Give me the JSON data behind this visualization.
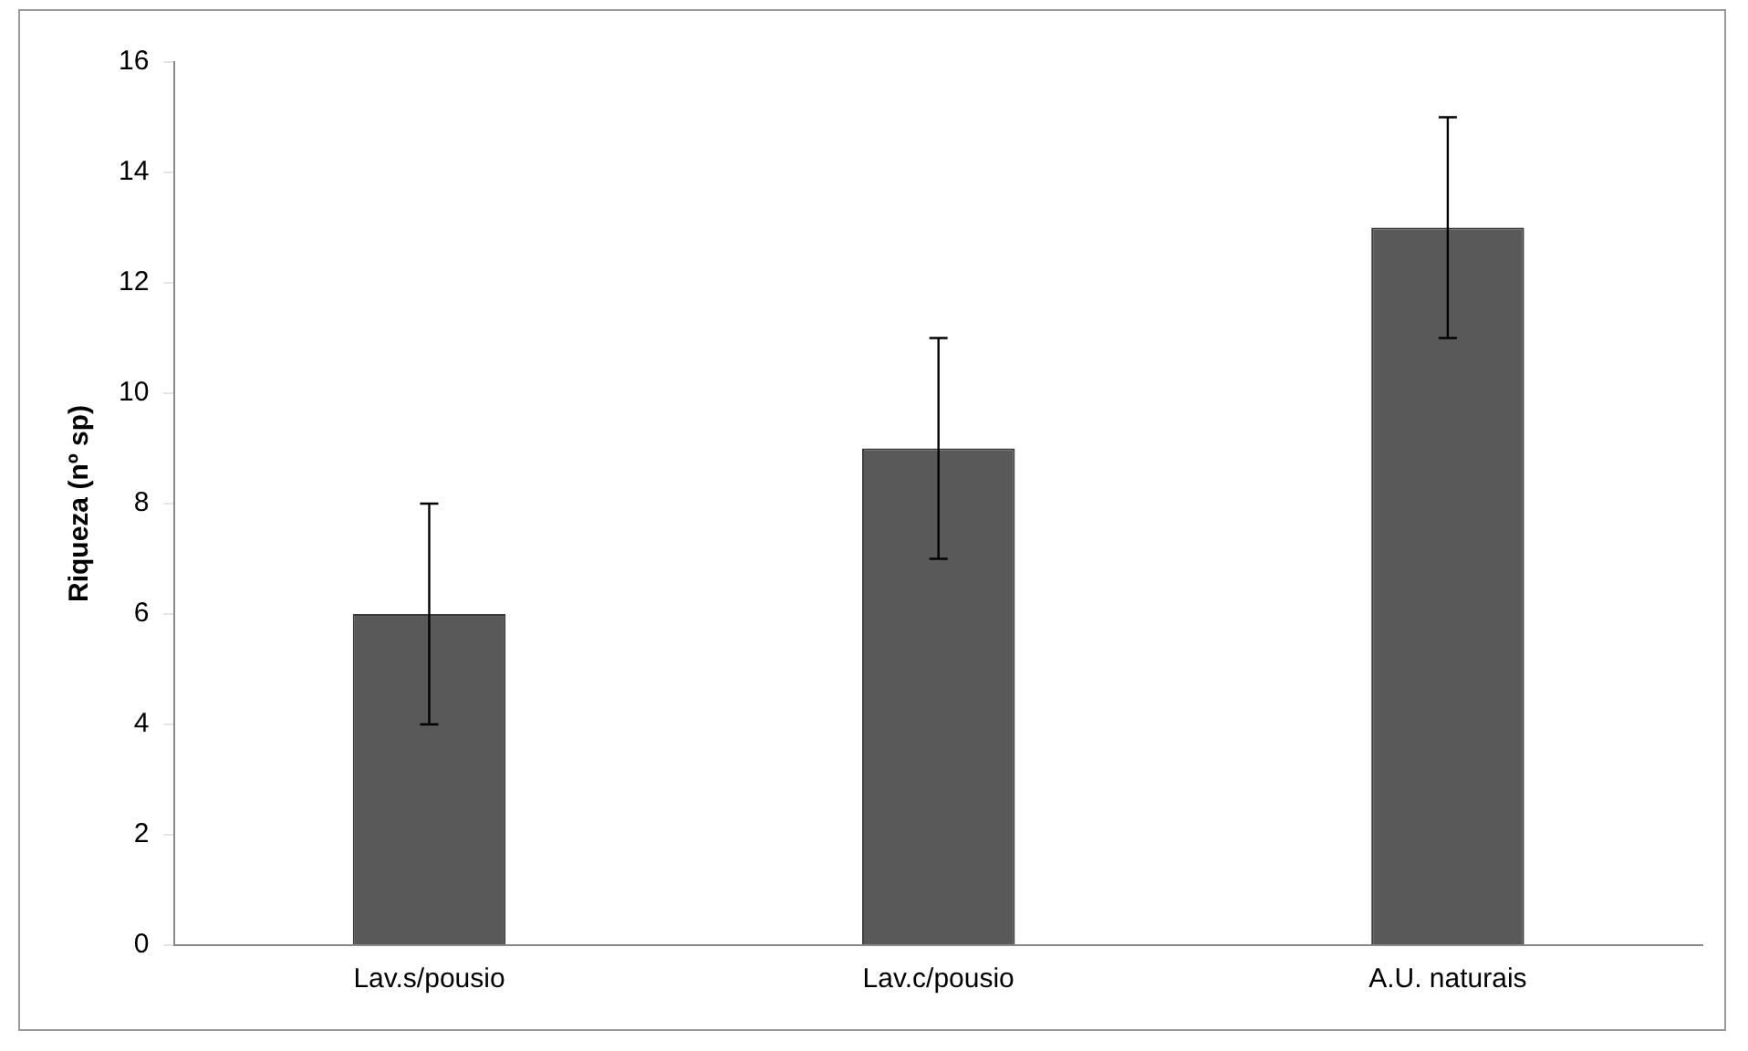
{
  "chart_data": {
    "type": "bar",
    "ylabel": "Riqueza (nº sp)",
    "categories": [
      "Lav.s/pousio",
      "Lav.c/pousio",
      "A.U. naturais"
    ],
    "values": [
      6,
      9,
      13
    ],
    "errors": [
      2,
      2,
      2
    ],
    "color": "#595959",
    "ylim": [
      0,
      16
    ],
    "yticks": [
      0,
      2,
      4,
      6,
      8,
      10,
      12,
      14,
      16
    ],
    "grid": false,
    "legend": false
  }
}
